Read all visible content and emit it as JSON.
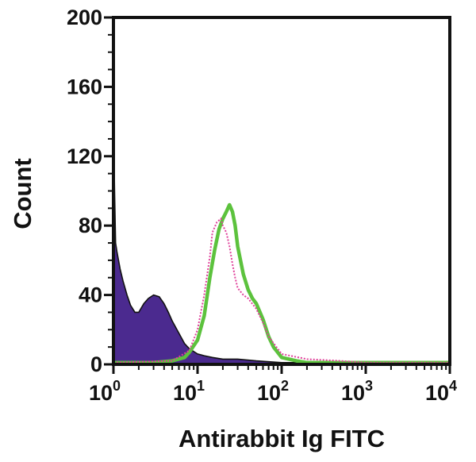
{
  "chart_data": {
    "type": "area",
    "xlabel": "Antirabbit Ig FITC",
    "ylabel": "Count",
    "xscale": "log",
    "xlim": [
      1,
      10000
    ],
    "ylim": [
      0,
      200
    ],
    "y_ticks": [
      0,
      40,
      80,
      120,
      160,
      200
    ],
    "x_ticks": [
      {
        "base": "10",
        "exp": "0"
      },
      {
        "base": "10",
        "exp": "1"
      },
      {
        "base": "10",
        "exp": "2"
      },
      {
        "base": "10",
        "exp": "3"
      },
      {
        "base": "10",
        "exp": "4"
      }
    ],
    "grid": false,
    "series": [
      {
        "style": "filled-black-outline",
        "color": "#4b2a8f",
        "x": [
          1.0,
          1.03,
          1.06,
          1.1,
          1.15,
          1.2,
          1.3,
          1.45,
          1.6,
          1.8,
          2.0,
          2.3,
          2.6,
          3.0,
          3.5,
          4.0,
          4.5,
          5.0,
          6.0,
          7.0,
          8.0,
          10.0,
          12.0,
          15.0,
          20.0,
          30.0,
          50.0,
          100.0,
          200.0,
          500.0,
          1000.0,
          10000.0
        ],
        "y": [
          140,
          100,
          70,
          65,
          60,
          55,
          48,
          40,
          34,
          30,
          30,
          35,
          38,
          40,
          39,
          35,
          30,
          25,
          18,
          12,
          9,
          6,
          5,
          4,
          3,
          3,
          2,
          1,
          1,
          0.5,
          0.3,
          0.2
        ]
      },
      {
        "style": "solid",
        "color": "#5cc23d",
        "x": [
          1.0,
          3.0,
          5.0,
          7.0,
          8.0,
          10.0,
          12.0,
          14.0,
          16.0,
          18.0,
          20.0,
          22.0,
          24.0,
          26.0,
          28.0,
          30.0,
          35.0,
          40.0,
          45.0,
          50.0,
          60.0,
          70.0,
          80.0,
          100.0,
          150.0,
          200.0,
          500.0,
          1000.0,
          10000.0
        ],
        "y": [
          1,
          1,
          2,
          4,
          7,
          14,
          28,
          50,
          66,
          78,
          84,
          88,
          92,
          88,
          80,
          68,
          52,
          43,
          38,
          35,
          26,
          16,
          10,
          4,
          2,
          1,
          1,
          1,
          1
        ]
      },
      {
        "style": "dotted",
        "color": "#e0409a",
        "x": [
          1.0,
          5.0,
          8.0,
          10.0,
          12.0,
          14.0,
          15.0,
          17.0,
          19.0,
          20.0,
          22.0,
          24.0,
          26.0,
          28.0,
          30.0,
          35.0,
          40.0,
          50.0,
          60.0,
          70.0,
          100.0,
          200.0,
          500.0,
          1000.0,
          10000.0
        ],
        "y": [
          1,
          2,
          8,
          20,
          40,
          62,
          76,
          82,
          84,
          80,
          76,
          68,
          58,
          50,
          44,
          40,
          38,
          32,
          24,
          16,
          6,
          3,
          2,
          1,
          1
        ]
      }
    ]
  }
}
